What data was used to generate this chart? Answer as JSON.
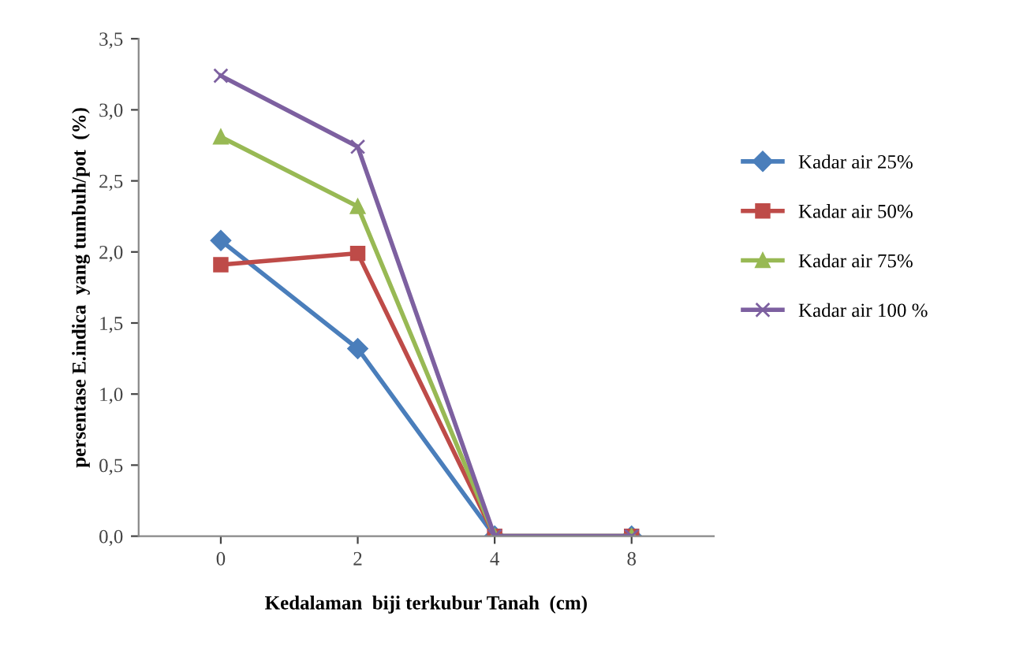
{
  "chart_data": {
    "type": "line",
    "xlabel": "Kedalaman  biji terkubur Tanah  (cm)",
    "ylabel": "persentase E.indica  yang tumbuh/pot  (%)",
    "categories": [
      "0",
      "2",
      "4",
      "8"
    ],
    "series": [
      {
        "name": "Kadar air 25%",
        "color": "#4a7ebb",
        "marker": "diamond",
        "values": [
          2.08,
          1.32,
          0,
          0
        ]
      },
      {
        "name": "Kadar air 50%",
        "color": "#be4b48",
        "marker": "square",
        "values": [
          1.91,
          1.99,
          0,
          0
        ]
      },
      {
        "name": "Kadar air 75%",
        "color": "#98b954",
        "marker": "triangle",
        "values": [
          2.81,
          2.32,
          0,
          0
        ]
      },
      {
        "name": "Kadar air 100 %",
        "color": "#7d60a0",
        "marker": "cross",
        "values": [
          3.24,
          2.74,
          0,
          0
        ]
      }
    ],
    "ylim": [
      0,
      3.5
    ],
    "yticks": [
      {
        "value": 0,
        "label": "0,0"
      },
      {
        "value": 0.5,
        "label": "0,5"
      },
      {
        "value": 1,
        "label": "1,0"
      },
      {
        "value": 1.5,
        "label": "1,5"
      },
      {
        "value": 2,
        "label": "2,0"
      },
      {
        "value": 2.5,
        "label": "2,5"
      },
      {
        "value": 3,
        "label": "3,0"
      },
      {
        "value": 3.5,
        "label": "3,5"
      }
    ],
    "legend": "right",
    "line_style": "solid"
  }
}
